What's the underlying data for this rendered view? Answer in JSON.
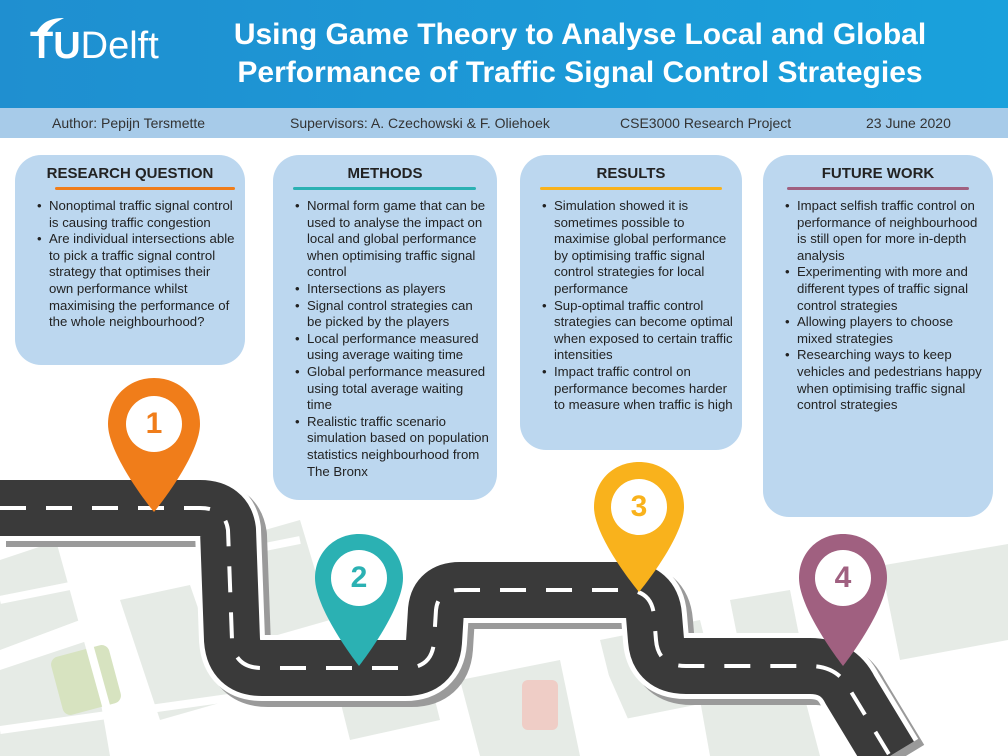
{
  "header": {
    "logo": {
      "tu": "TU",
      "delft": "Delft"
    },
    "title_line1": "Using Game Theory to Analyse Local and Global",
    "title_line2": "Performance of Traffic Signal Control Strategies"
  },
  "info": {
    "author": "Author: Pepijn Tersmette",
    "supervisors": "Supervisors: A. Czechowski & F. Oliehoek",
    "project": "CSE3000 Research Project",
    "date": "23 June 2020"
  },
  "colors": {
    "header": "#1a9bd8",
    "orange": "#f07d1a",
    "teal": "#2bb1b3",
    "yellow": "#f9b21c",
    "purple": "#a06080"
  },
  "cards": {
    "research": {
      "heading": "RESEARCH QUESTION",
      "items": [
        "Nonoptimal traffic signal control is causing traffic congestion",
        "Are individual intersections able to pick a traffic signal control strategy that optimises their own performance whilst maximising the performance of the whole neighbourhood?"
      ]
    },
    "methods": {
      "heading": "METHODS",
      "items": [
        "Normal form game that can be used to analyse the impact on local and global performance when optimising traffic signal control",
        "Intersections as players",
        "Signal control strategies can be picked by the players",
        "Local performance measured using average waiting time",
        "Global performance measured using total average waiting time",
        "Realistic traffic scenario simulation based on population statistics neighbourhood from The Bronx"
      ]
    },
    "results": {
      "heading": "RESULTS",
      "items": [
        "Simulation showed it is sometimes possible to maximise global performance by optimising traffic signal control strategies for local performance",
        "Sup-optimal traffic control strategies can become optimal when exposed to certain traffic intensities",
        "Impact traffic control on performance becomes harder to measure when traffic is high"
      ]
    },
    "future": {
      "heading": "FUTURE WORK",
      "items": [
        "Impact selfish traffic control on performance of neighbourhood is still open for more in-depth analysis",
        "Experimenting with more and different types of traffic signal control strategies",
        "Allowing players to choose mixed strategies",
        "Researching ways to keep vehicles and pedestrians happy when optimising traffic signal control strategies"
      ]
    }
  },
  "pins": {
    "p1": "1",
    "p2": "2",
    "p3": "3",
    "p4": "4"
  }
}
